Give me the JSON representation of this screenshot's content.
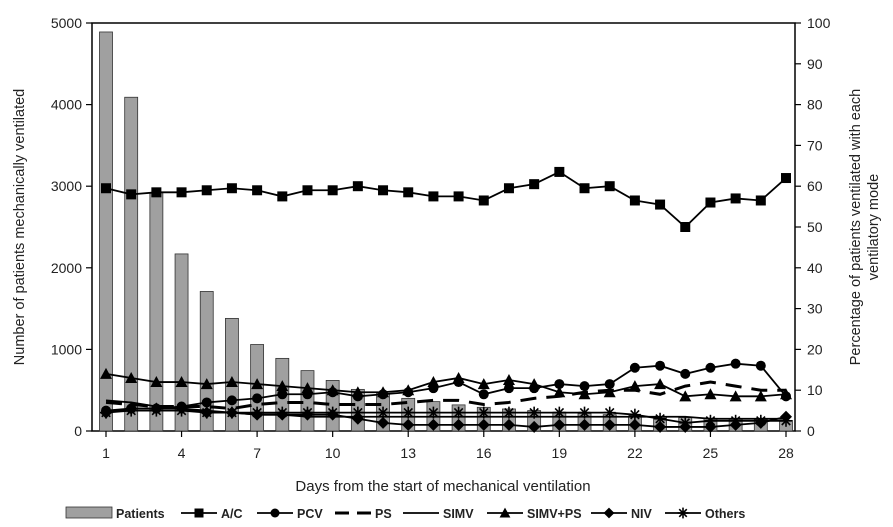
{
  "chart_data": {
    "type": "bar+line",
    "xlabel": "Days from the start of mechanical ventilation",
    "ylabel_left": "Number of patients mechanically ventilated",
    "ylabel_right": "Percentage of patients ventilated with each ventilatory mode",
    "ylim_left": [
      0,
      5000
    ],
    "yticks_left": [
      0,
      1000,
      2000,
      3000,
      4000,
      5000
    ],
    "ylim_right": [
      0,
      100
    ],
    "yticks_right": [
      0,
      10,
      20,
      30,
      40,
      50,
      60,
      70,
      80,
      90,
      100
    ],
    "xlim": [
      1,
      28
    ],
    "xticks": [
      1,
      4,
      7,
      10,
      13,
      16,
      19,
      22,
      25,
      28
    ],
    "grid": false,
    "legend_position": "bottom",
    "days": [
      1,
      2,
      3,
      4,
      5,
      6,
      7,
      8,
      9,
      10,
      11,
      12,
      13,
      14,
      15,
      16,
      17,
      18,
      19,
      20,
      21,
      22,
      23,
      24,
      25,
      26,
      27,
      28
    ],
    "patients": {
      "name": "Patients",
      "axis": "left",
      "color": "#a0a0a0",
      "values": [
        4890,
        4090,
        2920,
        2170,
        1710,
        1380,
        1060,
        890,
        740,
        620,
        510,
        460,
        400,
        360,
        320,
        290,
        270,
        250,
        230,
        215,
        200,
        185,
        175,
        165,
        155,
        145,
        140,
        130
      ]
    },
    "series": [
      {
        "name": "A/C",
        "marker": "square",
        "dash": "solid",
        "values": [
          59.5,
          58,
          58.5,
          58.5,
          59,
          59.5,
          59,
          57.5,
          59,
          59,
          60,
          59,
          58.5,
          57.5,
          57.5,
          56.5,
          59.5,
          60.5,
          63.5,
          59.5,
          60,
          56.5,
          55.5,
          50,
          56,
          57,
          56.5,
          62
        ]
      },
      {
        "name": "PCV",
        "marker": "circle",
        "dash": "solid",
        "values": [
          5,
          5.5,
          5.5,
          6,
          7,
          7.5,
          8,
          9,
          9,
          9.5,
          8.5,
          9,
          9.5,
          10.5,
          12,
          9,
          10.5,
          10.5,
          11.5,
          11,
          11.5,
          15.5,
          16,
          14,
          15.5,
          16.5,
          16,
          8.5
        ]
      },
      {
        "name": "PS",
        "marker": "none",
        "dash": "longdash",
        "values": [
          7,
          6.5,
          6,
          6,
          6,
          5.5,
          6.5,
          7,
          7,
          6.5,
          6.5,
          6.5,
          7,
          7.5,
          7.5,
          6.5,
          7,
          8,
          8.5,
          9.5,
          10,
          10,
          9,
          11,
          12,
          11,
          10,
          10
        ]
      },
      {
        "name": "SIMV",
        "marker": "none",
        "dash": "solid",
        "values": [
          7.5,
          7,
          6,
          5.5,
          5,
          4.5,
          4,
          4,
          3.5,
          3.5,
          3.5,
          3.5,
          3.5,
          3.5,
          3.5,
          3.5,
          3.5,
          3.5,
          3.5,
          3.5,
          3.5,
          3.5,
          3.5,
          3.5,
          3,
          3,
          3,
          3
        ]
      },
      {
        "name": "SIMV+PS",
        "marker": "triangle",
        "dash": "solid",
        "values": [
          14,
          13,
          12,
          12,
          11.5,
          12,
          11.5,
          11,
          10.5,
          10,
          9.5,
          9.5,
          10,
          12,
          13,
          11.5,
          12.5,
          11.5,
          9.5,
          9,
          9.5,
          11,
          11.5,
          8.5,
          9,
          8.5,
          8.5,
          9
        ]
      },
      {
        "name": "NIV",
        "marker": "diamond",
        "dash": "solid",
        "values": [
          4.5,
          5.5,
          5.5,
          5.5,
          4.5,
          4.5,
          4,
          4,
          4,
          4,
          3,
          2,
          1.5,
          1.5,
          1.5,
          1.5,
          1.5,
          1,
          1.5,
          1.5,
          1.5,
          1.5,
          1,
          1,
          1,
          1.5,
          2,
          3.5
        ]
      },
      {
        "name": "Others",
        "marker": "asterisk",
        "dash": "solid",
        "values": [
          4.5,
          5,
          5,
          5,
          4.5,
          4.5,
          4.5,
          4.5,
          4.5,
          4.5,
          4.5,
          4.5,
          4.5,
          4.5,
          4.5,
          4.5,
          4.5,
          4.5,
          4.5,
          4.5,
          4.5,
          4,
          3,
          2,
          2.5,
          2.5,
          2.5,
          2.5
        ]
      }
    ]
  }
}
